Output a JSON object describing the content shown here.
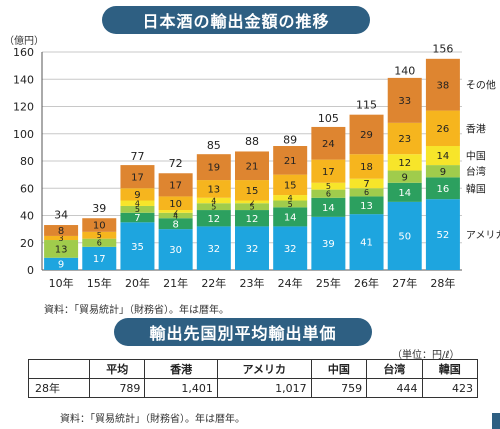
{
  "header": {
    "title": "日本酒の輸出金額の推移"
  },
  "chart_data": {
    "type": "bar",
    "stacked": true,
    "yunit": "（億円）",
    "ylim": [
      0,
      160
    ],
    "yticks": [
      0,
      20,
      40,
      60,
      80,
      100,
      120,
      140,
      160
    ],
    "categories": [
      "10年",
      "15年",
      "20年",
      "21年",
      "22年",
      "23年",
      "24年",
      "25年",
      "26年",
      "27年",
      "28年"
    ],
    "totals": [
      34,
      39,
      77,
      72,
      85,
      88,
      89,
      105,
      115,
      140,
      156
    ],
    "series": [
      {
        "name": "アメリカ",
        "color": "#1ea5df",
        "values": [
          9,
          17,
          35,
          30,
          32,
          32,
          32,
          39,
          41,
          50,
          52
        ]
      },
      {
        "name": "韓国",
        "color": "#2ca05f",
        "values": [
          null,
          null,
          7,
          8,
          12,
          12,
          14,
          14,
          13,
          14,
          16
        ]
      },
      {
        "name": "台湾",
        "color": "#a0cc4c",
        "values": [
          13,
          6,
          5,
          4,
          5,
          5,
          5,
          6,
          6,
          9,
          9
        ]
      },
      {
        "name": "中国",
        "color": "#f7e52a",
        "values": [
          null,
          null,
          4,
          2,
          4,
          2,
          4,
          5,
          7,
          12,
          14
        ]
      },
      {
        "name": "香港",
        "color": "#f6b51e",
        "values": [
          3,
          5,
          9,
          10,
          13,
          15,
          15,
          17,
          18,
          23,
          26
        ]
      },
      {
        "name": "その他",
        "color": "#de8530",
        "values": [
          8,
          10,
          17,
          17,
          19,
          21,
          21,
          24,
          29,
          33,
          38
        ]
      }
    ],
    "source": "資料：「貿易統計」（財務省）。年は暦年。"
  },
  "table": {
    "title": "輸出先国別平均輸出単価",
    "unit": "（単位：円/ℓ）",
    "headers": [
      "",
      "平均",
      "香港",
      "アメリカ",
      "中国",
      "台湾",
      "韓国"
    ],
    "rows": [
      [
        "28年",
        "789",
        "1,401",
        "1,017",
        "759",
        "444",
        "423"
      ]
    ],
    "source": "資料：「貿易統計」（財務省）。年は暦年。"
  }
}
